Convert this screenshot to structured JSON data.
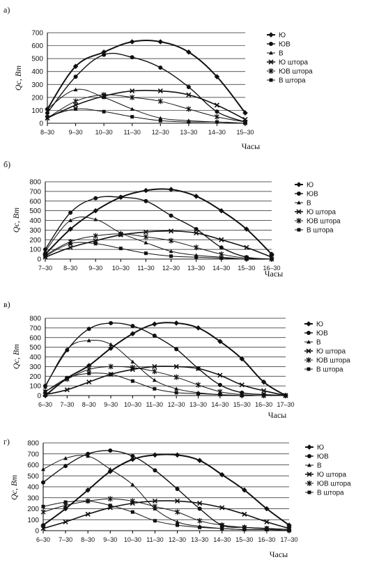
{
  "chart_data": [
    {
      "panel": "а)",
      "type": "line",
      "ylabel": "Qc, Вт",
      "xlabel": "Часы",
      "ylim": [
        0,
        700
      ],
      "yticks": [
        0,
        100,
        200,
        300,
        400,
        500,
        600,
        700
      ],
      "categories": [
        "8–30",
        "9–30",
        "10–30",
        "11–30",
        "12–30",
        "13–30",
        "14–30",
        "15–30"
      ],
      "series": [
        {
          "name": "Ю",
          "values": [
            110,
            440,
            550,
            630,
            630,
            550,
            360,
            80
          ]
        },
        {
          "name": "ЮВ",
          "values": [
            80,
            360,
            530,
            510,
            430,
            280,
            90,
            10
          ]
        },
        {
          "name": "В",
          "values": [
            110,
            260,
            200,
            110,
            40,
            20,
            10,
            0
          ]
        },
        {
          "name": "Ю штора",
          "values": [
            40,
            140,
            210,
            250,
            250,
            220,
            140,
            30
          ]
        },
        {
          "name": "ЮВ штора",
          "values": [
            40,
            170,
            220,
            200,
            170,
            110,
            50,
            10
          ]
        },
        {
          "name": "В штора",
          "values": [
            50,
            110,
            90,
            50,
            20,
            10,
            10,
            0
          ]
        }
      ],
      "legend": "right"
    },
    {
      "panel": "б)",
      "type": "line",
      "ylabel": "Qc, Вт",
      "xlabel": "Часы",
      "ylim": [
        0,
        800
      ],
      "yticks": [
        0,
        100,
        200,
        300,
        400,
        500,
        600,
        700,
        800
      ],
      "categories": [
        "7–30",
        "8–30",
        "9–30",
        "10–30",
        "11–30",
        "12–30",
        "13–30",
        "14–30",
        "15–30",
        "16–30"
      ],
      "series": [
        {
          "name": "Ю",
          "values": [
            50,
            310,
            500,
            640,
            710,
            720,
            650,
            500,
            310,
            50
          ]
        },
        {
          "name": "ЮВ",
          "values": [
            100,
            480,
            630,
            640,
            600,
            450,
            310,
            120,
            20,
            0
          ]
        },
        {
          "name": "В",
          "values": [
            80,
            400,
            410,
            270,
            170,
            80,
            40,
            20,
            0,
            0
          ]
        },
        {
          "name": "Ю штора",
          "values": [
            20,
            120,
            190,
            250,
            280,
            290,
            270,
            200,
            120,
            20
          ]
        },
        {
          "name": "ЮВ штора",
          "values": [
            40,
            180,
            240,
            260,
            230,
            190,
            120,
            50,
            10,
            0
          ]
        },
        {
          "name": "В штора",
          "values": [
            30,
            160,
            160,
            110,
            60,
            30,
            20,
            10,
            0,
            0
          ]
        }
      ],
      "legend": "right"
    },
    {
      "panel": "в)",
      "type": "line",
      "ylabel": "Qc, Вт",
      "xlabel": "Часы",
      "ylim": [
        0,
        800
      ],
      "yticks": [
        0,
        100,
        200,
        300,
        400,
        500,
        600,
        700,
        800
      ],
      "categories": [
        "6–30",
        "7–30",
        "8–30",
        "9–30",
        "10–30",
        "11–30",
        "12–30",
        "13–30",
        "14–30",
        "15–30",
        "16–30",
        "17–30"
      ],
      "series": [
        {
          "name": "Ю",
          "values": [
            0,
            180,
            310,
            490,
            640,
            740,
            750,
            700,
            560,
            380,
            140,
            0
          ]
        },
        {
          "name": "ЮВ",
          "values": [
            100,
            470,
            690,
            750,
            720,
            620,
            480,
            280,
            110,
            30,
            10,
            0
          ]
        },
        {
          "name": "В",
          "values": [
            90,
            480,
            570,
            530,
            350,
            160,
            70,
            30,
            10,
            0,
            0,
            0
          ]
        },
        {
          "name": "Ю штора",
          "values": [
            10,
            60,
            140,
            220,
            270,
            300,
            300,
            280,
            210,
            110,
            50,
            0
          ]
        },
        {
          "name": "ЮВ штора",
          "values": [
            40,
            170,
            270,
            300,
            290,
            250,
            190,
            110,
            40,
            10,
            0,
            0
          ]
        },
        {
          "name": "В штора",
          "values": [
            40,
            180,
            230,
            220,
            150,
            70,
            30,
            20,
            10,
            0,
            0,
            0
          ]
        }
      ],
      "legend": "right"
    },
    {
      "panel": "г)",
      "type": "line",
      "ylabel": "Qc, Вт",
      "xlabel": "Часы",
      "ylim": [
        0,
        800
      ],
      "yticks": [
        0,
        100,
        200,
        300,
        400,
        500,
        600,
        700,
        800
      ],
      "categories": [
        "6–30",
        "7–30",
        "8–30",
        "9–30",
        "10–30",
        "11–30",
        "12–30",
        "13–30",
        "14–30",
        "15–30",
        "16–30",
        "17–30"
      ],
      "series": [
        {
          "name": "Ю",
          "values": [
            50,
            200,
            370,
            540,
            650,
            690,
            690,
            640,
            510,
            370,
            200,
            50
          ]
        },
        {
          "name": "ЮВ",
          "values": [
            440,
            590,
            700,
            730,
            680,
            550,
            380,
            200,
            50,
            30,
            20,
            10
          ]
        },
        {
          "name": "В",
          "values": [
            560,
            660,
            680,
            560,
            420,
            200,
            80,
            40,
            20,
            10,
            10,
            0
          ]
        },
        {
          "name": "Ю штора",
          "values": [
            20,
            80,
            150,
            210,
            250,
            270,
            270,
            250,
            210,
            150,
            80,
            20
          ]
        },
        {
          "name": "ЮВ штора",
          "values": [
            170,
            230,
            270,
            290,
            270,
            220,
            170,
            90,
            50,
            30,
            20,
            10
          ]
        },
        {
          "name": "В штора",
          "values": [
            220,
            260,
            270,
            230,
            170,
            90,
            50,
            30,
            20,
            10,
            10,
            0
          ]
        }
      ],
      "legend": "right"
    }
  ]
}
